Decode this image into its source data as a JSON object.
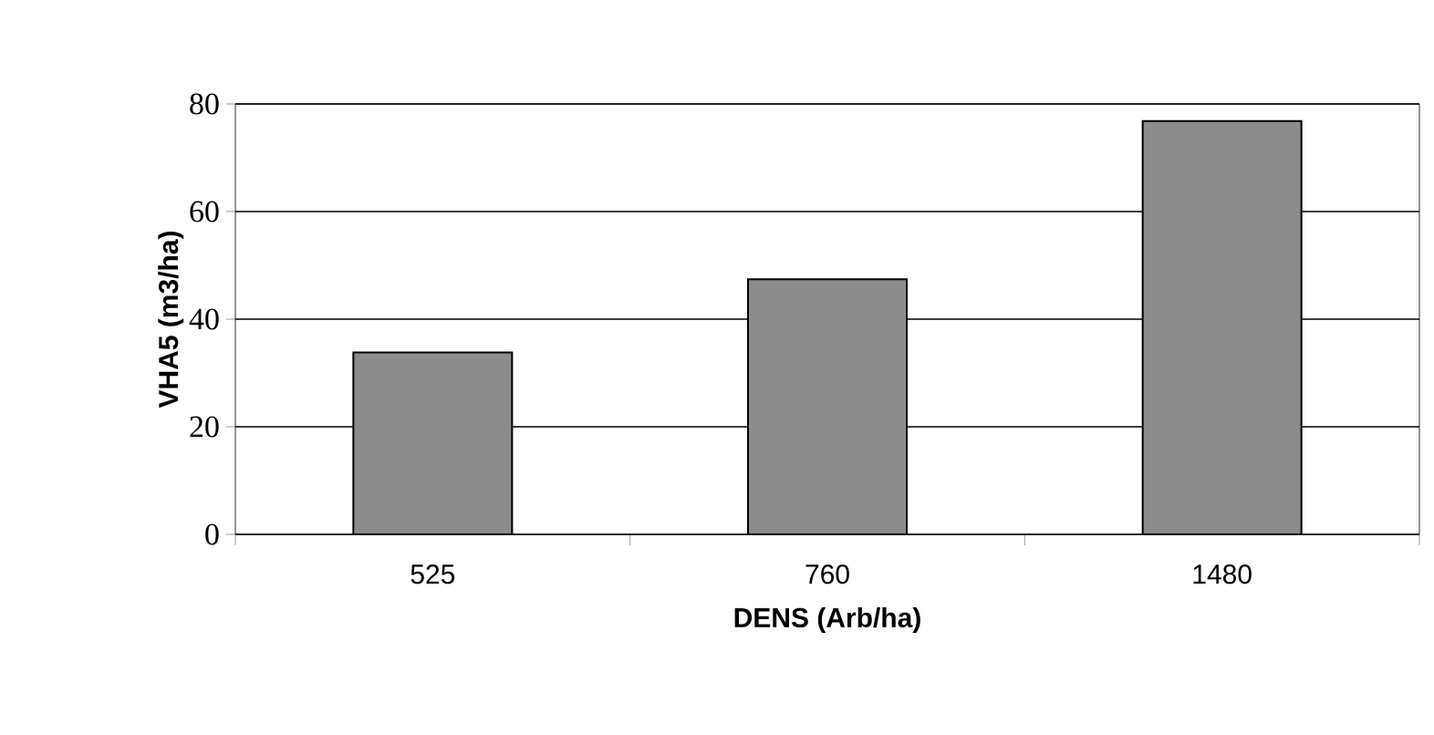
{
  "chart_data": {
    "type": "bar",
    "xlabel": "DENS (Arb/ha)",
    "ylabel": "VHA5 (m3/ha)",
    "categories": [
      "525",
      "760",
      "1480"
    ],
    "values": [
      33.8,
      47.4,
      76.8
    ],
    "color": "#8c8c8c",
    "ylim": [
      0,
      80
    ],
    "yticks": [
      0,
      20,
      40,
      60,
      80
    ],
    "grid": "y"
  }
}
